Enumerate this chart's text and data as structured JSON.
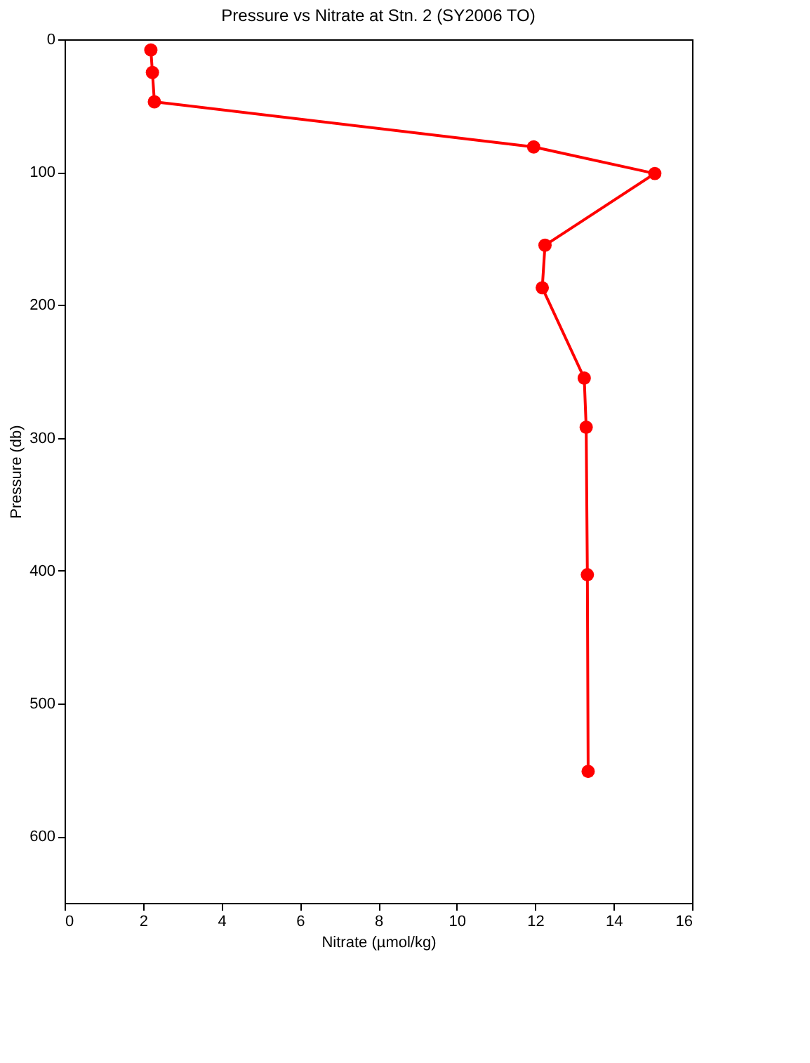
{
  "chart_data": {
    "type": "line",
    "title": "Pressure vs Nitrate at Stn. 2 (SY2006 TO)",
    "xlabel": "Nitrate (µmol/kg)",
    "ylabel": "Pressure (db)",
    "series": [
      {
        "color": "#ff0000",
        "x": [
          2.2,
          2.24,
          2.29,
          11.96,
          15.05,
          12.25,
          12.18,
          13.25,
          13.3,
          13.33,
          13.35
        ],
        "values": [
          8,
          25,
          47,
          81,
          101,
          155,
          187,
          255,
          292,
          403,
          551
        ]
      }
    ],
    "xlim": [
      0,
      16
    ],
    "xticks": [
      0,
      2,
      4,
      6,
      8,
      10,
      12,
      14,
      16
    ],
    "ylim": [
      650,
      0
    ],
    "yticks": [
      0,
      100,
      200,
      300,
      400,
      500,
      600
    ],
    "grid": false,
    "marker": "circle",
    "line_style": "solid"
  }
}
